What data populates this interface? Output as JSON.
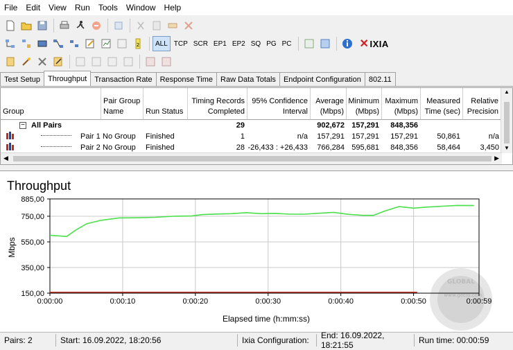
{
  "menu": [
    "File",
    "Edit",
    "View",
    "Run",
    "Tools",
    "Window",
    "Help"
  ],
  "toolbar2": {
    "labels": [
      "ALL",
      "TCP",
      "SCR",
      "EP1",
      "EP2",
      "SQ",
      "PG",
      "PC"
    ],
    "brand": "IXIA"
  },
  "tabs": [
    "Test Setup",
    "Throughput",
    "Transaction Rate",
    "Response Time",
    "Raw Data Totals",
    "Endpoint Configuration",
    "802.11"
  ],
  "active_tab": "Throughput",
  "grid": {
    "headers": [
      "Group",
      "Pair Group Name",
      "Run Status",
      "Timing Records Completed",
      "95% Confidence Interval",
      "Average (Mbps)",
      "Minimum (Mbps)",
      "Maximum (Mbps)",
      "Measured Time (sec)",
      "Relative Precision"
    ],
    "all_pairs": {
      "label": "All Pairs",
      "records": "29",
      "average": "902,672",
      "minimum": "157,291",
      "maximum": "848,356"
    },
    "rows": [
      {
        "pair": "Pair 1",
        "group": "No Group",
        "status": "Finished",
        "records": "1",
        "ci": "n/a",
        "average": "157,291",
        "minimum": "157,291",
        "maximum": "157,291",
        "time": "50,861",
        "precision": "n/a"
      },
      {
        "pair": "Pair 2",
        "group": "No Group",
        "status": "Finished",
        "records": "28",
        "ci": "-26,433 : +26,433",
        "average": "766,284",
        "minimum": "595,681",
        "maximum": "848,356",
        "time": "58,464",
        "precision": "3,450"
      }
    ]
  },
  "chart_data": {
    "type": "line",
    "title": "Throughput",
    "xlabel": "Elapsed time (h:mm:ss)",
    "ylabel": "Mbps",
    "yticks": [
      "885,00",
      "750,00",
      "550,00",
      "350,00",
      "150,00"
    ],
    "ytick_values": [
      885,
      750,
      550,
      350,
      150
    ],
    "xticks": [
      "0:00:00",
      "0:00:10",
      "0:00:20",
      "0:00:30",
      "0:00:40",
      "0:00:50",
      "0:00:59"
    ],
    "xtick_values": [
      0,
      10,
      20,
      30,
      40,
      50,
      59
    ],
    "ylim": [
      150,
      885
    ],
    "xlim": [
      0,
      59
    ],
    "grid": true,
    "series": [
      {
        "color": "#49e049",
        "x": [
          0,
          2.3,
          3.5,
          5,
          7,
          9.5,
          12,
          14.5,
          17,
          19.5,
          21,
          23,
          25,
          27,
          29,
          31,
          33,
          35,
          37,
          39,
          41,
          43,
          44.5,
          46,
          48,
          50,
          52,
          54,
          56,
          58.3
        ],
        "y": [
          602,
          592,
          640,
          690,
          718,
          737,
          738,
          742,
          750,
          752,
          763,
          767,
          770,
          778,
          770,
          772,
          766,
          766,
          773,
          780,
          765,
          757,
          757,
          790,
          825,
          813,
          822,
          828,
          834,
          833
        ]
      },
      {
        "color": "#c0392b",
        "x": [
          0,
          50.5
        ],
        "y": [
          157,
          157
        ]
      }
    ],
    "watermark": {
      "brand": "GLOBAL",
      "url": "www.gecid.com"
    }
  },
  "status": {
    "pairs": "Pairs: 2",
    "start": "Start: 16.09.2022, 18:20:56",
    "config": "Ixia Configuration:",
    "end": "End: 16.09.2022, 18:21:55",
    "runtime": "Run time: 00:00:59"
  }
}
